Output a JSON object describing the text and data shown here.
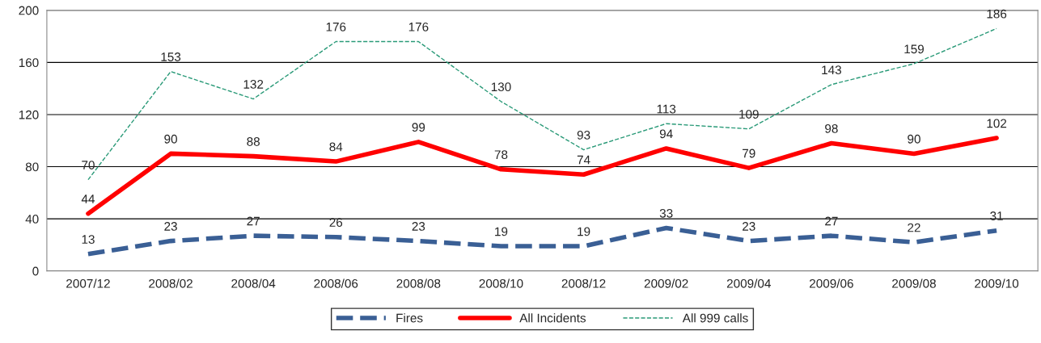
{
  "chart_data": {
    "type": "line",
    "categories": [
      "2007/12",
      "2008/02",
      "2008/04",
      "2008/06",
      "2008/08",
      "2008/10",
      "2008/12",
      "2009/02",
      "2009/04",
      "2009/06",
      "2009/08",
      "2009/10"
    ],
    "series": [
      {
        "name": "Fires",
        "color": "#3a5f95",
        "line_style": "dashed",
        "values": [
          13,
          23,
          27,
          26,
          23,
          19,
          19,
          33,
          23,
          27,
          22,
          31
        ]
      },
      {
        "name": "All Incidents",
        "color": "#ff0000",
        "line_style": "solid",
        "values": [
          44,
          90,
          88,
          84,
          99,
          78,
          74,
          94,
          79,
          98,
          90,
          102
        ]
      },
      {
        "name": "All 999 calls",
        "color": "#2a9a78",
        "line_style": "dashed",
        "values": [
          70,
          153,
          132,
          176,
          176,
          130,
          93,
          113,
          109,
          143,
          159,
          186
        ]
      }
    ],
    "ylim": [
      0,
      200
    ],
    "yticks": [
      0,
      40,
      80,
      120,
      160,
      200
    ],
    "grid": "y",
    "legend": "bottom",
    "data_labels": true,
    "marker": "none"
  }
}
